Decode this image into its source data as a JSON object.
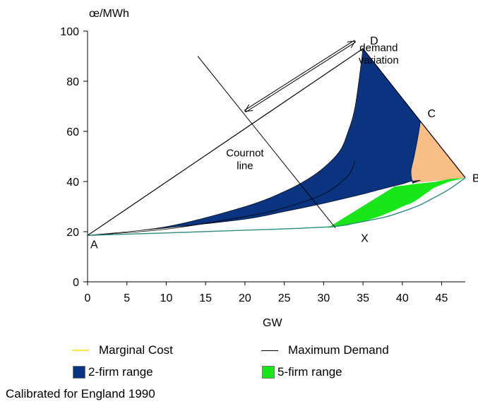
{
  "chart_data": {
    "type": "area",
    "ylabel": "œ/MWh",
    "xlabel": "GW",
    "xlim": [
      0,
      48
    ],
    "ylim": [
      0,
      100
    ],
    "xticks": [
      0,
      5,
      10,
      15,
      20,
      25,
      30,
      35,
      40,
      45
    ],
    "yticks": [
      0,
      20,
      40,
      60,
      80,
      100
    ],
    "grid": false,
    "colors": {
      "two_firm": "#0a3380",
      "five_firm": "#19e619",
      "peach": "#f9bd86",
      "marginal_cost": "#2a8a80",
      "maximum_demand": "#000000",
      "axis": "#000000"
    },
    "series": [
      {
        "name": "Marginal Cost",
        "x": [
          0,
          10,
          20,
          25,
          30,
          32,
          35,
          38,
          40,
          42,
          44,
          46,
          48
        ],
        "y": [
          18.5,
          19.5,
          20.6,
          21.1,
          21.8,
          22.3,
          24,
          26,
          28,
          30.3,
          33.5,
          37,
          41.5
        ]
      },
      {
        "name": "Maximum Demand",
        "x": [
          0,
          35,
          42.3,
          48
        ],
        "y": [
          18.5,
          93,
          64,
          41.5
        ]
      }
    ],
    "regions": [
      {
        "name": "2-firm range",
        "upper_x": [
          0,
          10,
          20,
          25,
          28,
          30,
          32,
          33,
          34,
          35
        ],
        "upper_y": [
          18.5,
          22,
          30,
          36,
          41,
          45.5,
          52,
          59,
          70,
          93
        ],
        "lower_x": [
          0,
          10,
          20,
          25,
          30,
          35,
          38,
          40,
          41,
          42.3
        ],
        "lower_y": [
          18.5,
          21.5,
          25,
          28,
          31.3,
          35,
          37.5,
          39,
          40,
          40.5
        ],
        "right_edge_x": [
          35,
          42.3
        ],
        "right_edge_y": [
          93,
          64
        ],
        "curve_x": [
          42.3,
          42,
          41.5,
          41.1,
          41.3
        ],
        "curve_y": [
          64,
          58,
          50,
          44,
          39.3
        ]
      },
      {
        "name": "5-firm range",
        "x": [
          30.5,
          33,
          35,
          37,
          39,
          40,
          41.2,
          42,
          44,
          46,
          48,
          46,
          44,
          42.5,
          41.5,
          40.5,
          39
        ],
        "y": [
          21.5,
          22.5,
          24,
          26,
          28.5,
          30,
          31.5,
          33,
          37.5,
          40,
          41.5,
          41,
          39.8,
          39.3,
          39,
          38.5,
          38
        ]
      }
    ],
    "points": [
      {
        "label": "A",
        "x": 0,
        "y": 18.5
      },
      {
        "label": "B",
        "x": 48,
        "y": 41.5
      },
      {
        "label": "C",
        "x": 42.3,
        "y": 64
      },
      {
        "label": "D",
        "x": 35,
        "y": 93
      },
      {
        "label": "X",
        "x": 31.5,
        "y": 21.5
      }
    ],
    "annotations": [
      {
        "text": "demand",
        "x": 37,
        "y": 92
      },
      {
        "text": "variation",
        "x": 37,
        "y": 87
      },
      {
        "text": "Cournot",
        "x": 20,
        "y": 50
      },
      {
        "text": "line",
        "x": 20,
        "y": 45
      }
    ],
    "cournot_line": {
      "x": [
        14,
        31.5
      ],
      "y": [
        90,
        21.5
      ]
    },
    "demand_arrow": {
      "x": [
        20,
        34
      ],
      "y": [
        68,
        96
      ]
    },
    "upper_curve_x": [
      0,
      10,
      20,
      25,
      30,
      33,
      34
    ],
    "upper_curve_y": [
      18.5,
      21,
      26,
      29.5,
      35,
      42,
      48
    ]
  },
  "legend": {
    "marginal_cost": "Marginal Cost",
    "maximum_demand": "Maximum Demand",
    "two_firm": "2-firm range",
    "five_firm": "5-firm range"
  },
  "caption": "Calibrated for England 1990"
}
